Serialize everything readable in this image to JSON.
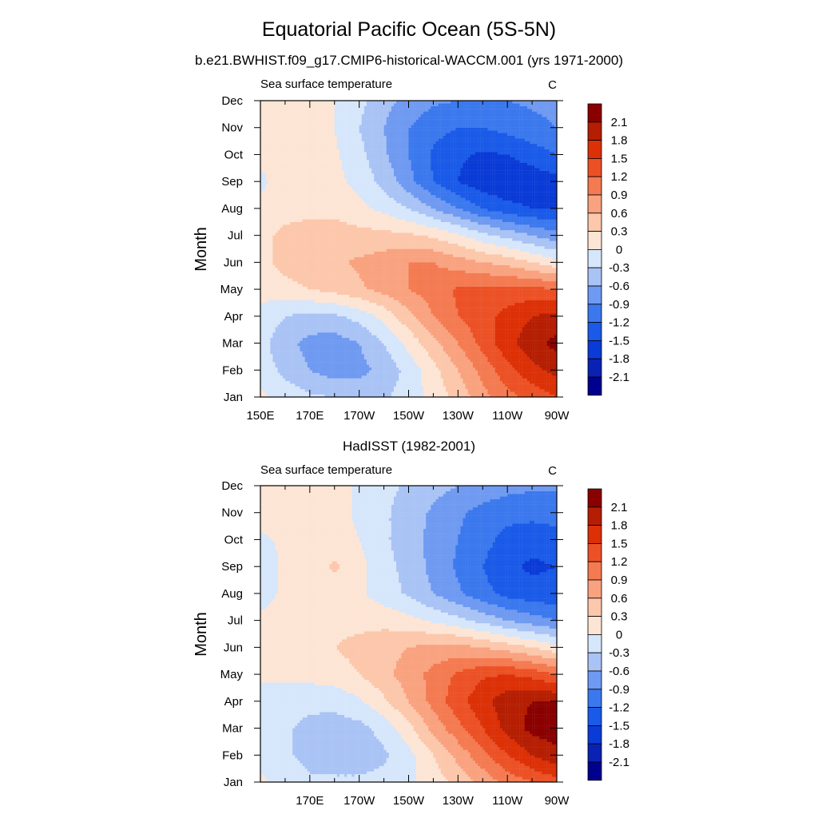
{
  "figure": {
    "title": "Equatorial Pacific Ocean (5S-5N)"
  },
  "colors": {
    "levels": [
      -2.1,
      -1.8,
      -1.5,
      -1.2,
      -0.9,
      -0.6,
      -0.3,
      0,
      0.3,
      0.6,
      0.9,
      1.2,
      1.5,
      1.8,
      2.1
    ],
    "palette": [
      "#00008f",
      "#0a22b3",
      "#0a3bd6",
      "#1a5ae8",
      "#3b78ee",
      "#6f9af1",
      "#a9c3f5",
      "#d6e6fb",
      "#fde5d5",
      "#fcc7ab",
      "#f9a27f",
      "#f47a51",
      "#ec5126",
      "#dc3007",
      "#b51e02",
      "#8a0000"
    ]
  },
  "chart_data": [
    {
      "type": "heatmap",
      "title": "b.e21.BWHIST.f09_g17.CMIP6-historical-WACCM.001 (yrs 1971-2000)",
      "panel_left": "Sea surface temperature",
      "panel_right": "C",
      "ylabel": "Month",
      "x_ticks": [
        {
          "value": 150,
          "label": "150E"
        },
        {
          "value": 170,
          "label": "170E"
        },
        {
          "value": 190,
          "label": "170W"
        },
        {
          "value": 210,
          "label": "150W"
        },
        {
          "value": 230,
          "label": "130W"
        },
        {
          "value": 250,
          "label": "110W"
        },
        {
          "value": 270,
          "label": "90W"
        }
      ],
      "xlim": [
        150,
        270
      ],
      "y_ticks": [
        "Jan",
        "Feb",
        "Mar",
        "Apr",
        "May",
        "Jun",
        "Jul",
        "Aug",
        "Sep",
        "Oct",
        "Nov",
        "Dec"
      ],
      "ylim": [
        1,
        12
      ],
      "colorbar_labels": [
        "2.1",
        "1.8",
        "1.5",
        "1.2",
        "0.9",
        "0.6",
        "0.3",
        "0",
        "-0.3",
        "-0.6",
        "-0.9",
        "-1.2",
        "-1.5",
        "-1.8",
        "-2.1"
      ],
      "x": [
        150,
        160,
        170,
        180,
        190,
        200,
        210,
        220,
        230,
        240,
        250,
        260,
        270
      ],
      "y": [
        1,
        2,
        3,
        4,
        5,
        6,
        7,
        8,
        9,
        10,
        11,
        12
      ],
      "z": [
        [
          0.05,
          -0.1,
          -0.25,
          -0.3,
          -0.35,
          -0.35,
          -0.15,
          0.1,
          0.4,
          0.8,
          1.1,
          1.3,
          1.5
        ],
        [
          -0.1,
          -0.4,
          -0.6,
          -0.75,
          -0.7,
          -0.5,
          -0.2,
          0.2,
          0.6,
          1.0,
          1.4,
          1.7,
          1.9
        ],
        [
          -0.2,
          -0.5,
          -0.7,
          -0.75,
          -0.6,
          -0.3,
          0.1,
          0.5,
          0.9,
          1.3,
          1.7,
          2.0,
          2.2
        ],
        [
          -0.1,
          -0.3,
          -0.4,
          -0.35,
          -0.2,
          0.1,
          0.5,
          0.9,
          1.2,
          1.4,
          1.6,
          1.8,
          1.9
        ],
        [
          0.1,
          0.2,
          0.3,
          0.4,
          0.55,
          0.7,
          0.9,
          1.05,
          1.25,
          1.3,
          1.3,
          1.3,
          1.2
        ],
        [
          0.2,
          0.4,
          0.5,
          0.55,
          0.65,
          0.75,
          0.9,
          0.9,
          0.75,
          0.6,
          0.5,
          0.3,
          0.1
        ],
        [
          0.2,
          0.4,
          0.45,
          0.45,
          0.4,
          0.4,
          0.35,
          0.25,
          0.05,
          -0.2,
          -0.4,
          -0.6,
          -0.8
        ],
        [
          0.05,
          0.15,
          0.2,
          0.2,
          0.1,
          -0.1,
          -0.3,
          -0.6,
          -0.9,
          -1.2,
          -1.4,
          -1.5,
          -1.5
        ],
        [
          -0.05,
          0.1,
          0.15,
          0.1,
          -0.1,
          -0.4,
          -0.8,
          -1.2,
          -1.5,
          -1.7,
          -1.75,
          -1.7,
          -1.6
        ],
        [
          0.05,
          0.15,
          0.15,
          0.05,
          -0.2,
          -0.55,
          -0.9,
          -1.25,
          -1.45,
          -1.55,
          -1.5,
          -1.35,
          -1.2
        ],
        [
          0.15,
          0.15,
          0.1,
          0.0,
          -0.3,
          -0.6,
          -0.9,
          -1.1,
          -1.2,
          -1.2,
          -1.1,
          -1.0,
          -0.9
        ],
        [
          0.15,
          0.15,
          0.1,
          0.0,
          -0.2,
          -0.5,
          -0.7,
          -0.85,
          -0.9,
          -0.95,
          -0.9,
          -0.85,
          -0.8
        ]
      ]
    },
    {
      "type": "heatmap",
      "title": "HadISST (1982-2001)",
      "panel_left": "Sea surface temperature",
      "panel_right": "C",
      "ylabel": "Month",
      "x_ticks": [
        {
          "value": 170,
          "label": "170E"
        },
        {
          "value": 190,
          "label": "170W"
        },
        {
          "value": 210,
          "label": "150W"
        },
        {
          "value": 230,
          "label": "130W"
        },
        {
          "value": 250,
          "label": "110W"
        },
        {
          "value": 270,
          "label": "90W"
        }
      ],
      "xlim": [
        150,
        270
      ],
      "y_ticks": [
        "Jan",
        "Feb",
        "Mar",
        "Apr",
        "May",
        "Jun",
        "Jul",
        "Aug",
        "Sep",
        "Oct",
        "Nov",
        "Dec"
      ],
      "ylim": [
        1,
        12
      ],
      "colorbar_labels": [
        "2.1",
        "1.8",
        "1.5",
        "1.2",
        "0.9",
        "0.6",
        "0.3",
        "0",
        "-0.3",
        "-0.6",
        "-0.9",
        "-1.2",
        "-1.5",
        "-1.8",
        "-2.1"
      ],
      "x": [
        150,
        160,
        170,
        180,
        190,
        200,
        210,
        220,
        230,
        240,
        250,
        260,
        270
      ],
      "y": [
        1,
        2,
        3,
        4,
        5,
        6,
        7,
        8,
        9,
        10,
        11,
        12
      ],
      "z": [
        [
          0.05,
          -0.1,
          -0.25,
          -0.25,
          -0.25,
          -0.2,
          -0.05,
          0.15,
          0.4,
          0.7,
          1.0,
          1.2,
          1.4
        ],
        [
          -0.1,
          -0.25,
          -0.4,
          -0.45,
          -0.45,
          -0.35,
          -0.1,
          0.3,
          0.7,
          1.1,
          1.5,
          1.8,
          2.0
        ],
        [
          -0.15,
          -0.25,
          -0.4,
          -0.45,
          -0.4,
          -0.2,
          0.2,
          0.7,
          1.1,
          1.5,
          1.9,
          2.2,
          2.3
        ],
        [
          -0.1,
          -0.15,
          -0.2,
          -0.2,
          -0.05,
          0.25,
          0.6,
          1.0,
          1.4,
          1.7,
          2.0,
          2.1,
          2.1
        ],
        [
          0.05,
          0.05,
          0.1,
          0.15,
          0.3,
          0.5,
          0.75,
          1.0,
          1.25,
          1.45,
          1.5,
          1.4,
          1.2
        ],
        [
          0.1,
          0.15,
          0.2,
          0.3,
          0.4,
          0.5,
          0.6,
          0.7,
          0.7,
          0.6,
          0.45,
          0.3,
          0.1
        ],
        [
          0.05,
          0.1,
          0.15,
          0.2,
          0.2,
          0.2,
          0.1,
          -0.05,
          -0.2,
          -0.4,
          -0.6,
          -0.75,
          -0.9
        ],
        [
          -0.1,
          0.05,
          0.1,
          0.1,
          0.05,
          -0.15,
          -0.35,
          -0.6,
          -0.85,
          -1.1,
          -1.3,
          -1.4,
          -1.4
        ],
        [
          -0.15,
          0.05,
          0.15,
          0.35,
          0.1,
          -0.2,
          -0.4,
          -0.7,
          -0.95,
          -1.2,
          -1.45,
          -1.55,
          -1.5
        ],
        [
          -0.05,
          0.05,
          0.1,
          0.1,
          0.0,
          -0.25,
          -0.45,
          -0.7,
          -0.9,
          -1.1,
          -1.3,
          -1.4,
          -1.35
        ],
        [
          0.1,
          0.15,
          0.15,
          0.1,
          -0.05,
          -0.25,
          -0.45,
          -0.65,
          -0.85,
          -1.0,
          -1.1,
          -1.1,
          -1.05
        ],
        [
          0.1,
          0.15,
          0.15,
          0.1,
          -0.05,
          -0.2,
          -0.35,
          -0.5,
          -0.6,
          -0.7,
          -0.8,
          -0.85,
          -0.85
        ]
      ]
    }
  ]
}
